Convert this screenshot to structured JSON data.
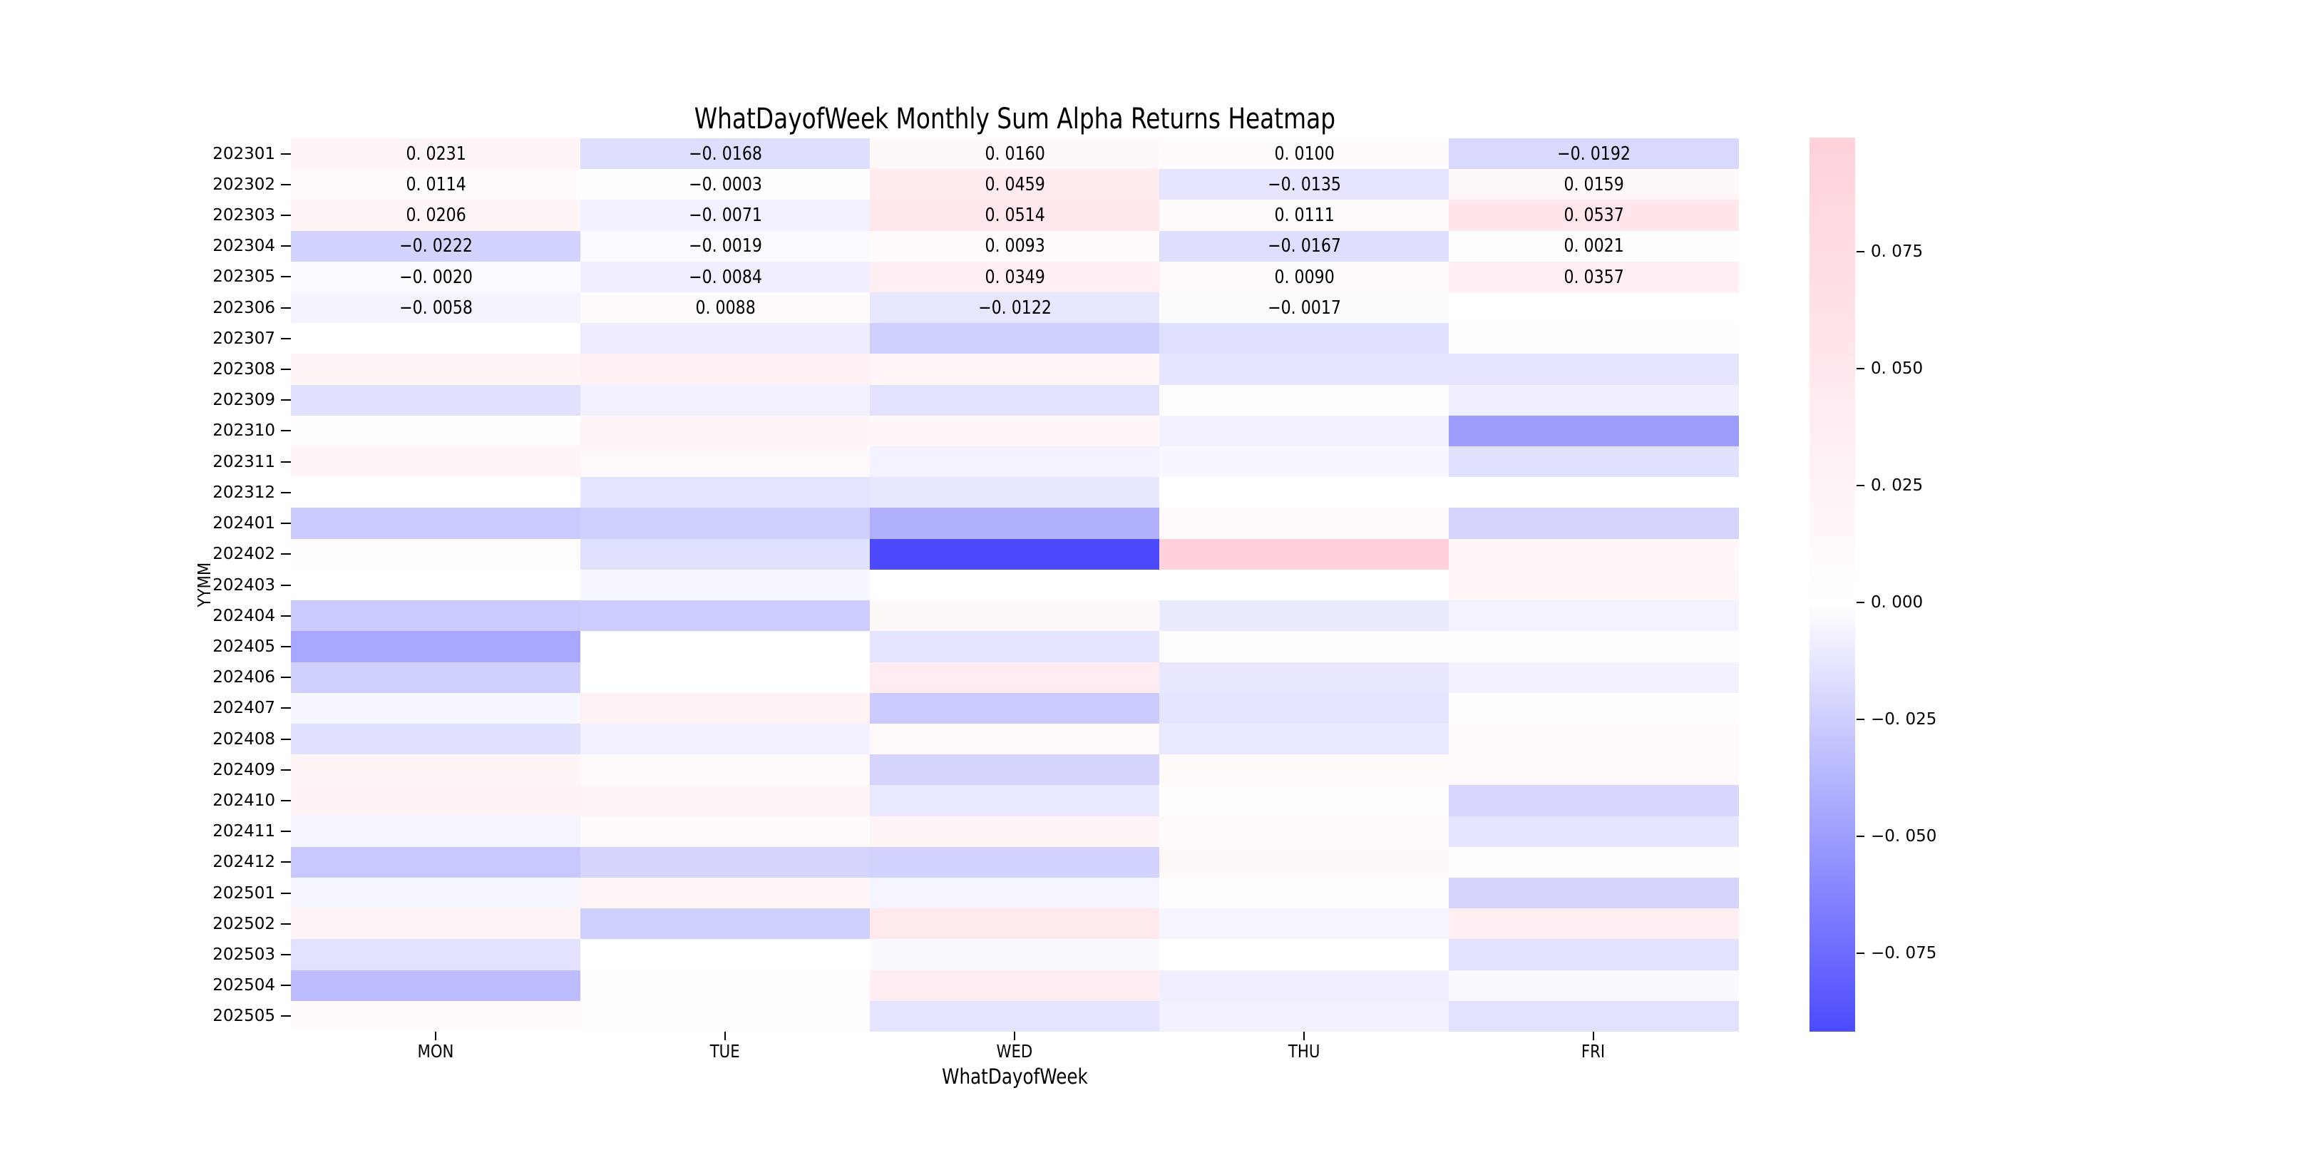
{
  "figure": {
    "background": "#ffffff",
    "text_color": "#000000"
  },
  "chart_data": {
    "type": "heatmap",
    "title": "WhatDayofWeek Monthly Sum Alpha Returns Heatmap",
    "xlabel": "WhatDayofWeek",
    "ylabel": "YYMM",
    "columns": [
      "MON",
      "TUE",
      "WED",
      "THU",
      "FRI"
    ],
    "rows": [
      "202301",
      "202302",
      "202303",
      "202304",
      "202305",
      "202306",
      "202307",
      "202308",
      "202309",
      "202310",
      "202311",
      "202312",
      "202401",
      "202402",
      "202403",
      "202404",
      "202405",
      "202406",
      "202407",
      "202408",
      "202409",
      "202410",
      "202411",
      "202412",
      "202501",
      "202502",
      "202503",
      "202504",
      "202505"
    ],
    "values": [
      [
        0.0231,
        -0.0168,
        0.016,
        0.01,
        -0.0192
      ],
      [
        0.0114,
        -0.0003,
        0.0459,
        -0.0135,
        0.0159
      ],
      [
        0.0206,
        -0.0071,
        0.0514,
        0.0111,
        0.0537
      ],
      [
        -0.0222,
        -0.0019,
        0.0093,
        -0.0167,
        0.0021
      ],
      [
        -0.002,
        -0.0084,
        0.0349,
        0.009,
        0.0357
      ],
      [
        -0.0058,
        0.0088,
        -0.0122,
        -0.0017,
        null
      ],
      [
        0.0,
        -0.009,
        -0.024,
        -0.016,
        0.005
      ],
      [
        0.024,
        0.032,
        0.02,
        -0.013,
        -0.013
      ],
      [
        -0.016,
        -0.007,
        -0.015,
        0.002,
        -0.008
      ],
      [
        0.004,
        0.024,
        0.018,
        -0.007,
        -0.05
      ],
      [
        0.024,
        0.012,
        -0.006,
        -0.004,
        -0.016
      ],
      [
        0.001,
        -0.014,
        -0.012,
        0.001,
        0.001
      ],
      [
        -0.027,
        -0.024,
        -0.04,
        0.01,
        -0.022
      ],
      [
        0.006,
        -0.016,
        -0.0917,
        0.0994,
        0.018
      ],
      [
        0.001,
        -0.004,
        0.001,
        0.0,
        0.02
      ],
      [
        -0.027,
        -0.026,
        0.015,
        -0.01,
        -0.006
      ],
      [
        -0.045,
        0.0,
        -0.014,
        0.004,
        0.004
      ],
      [
        -0.024,
        0.0,
        0.04,
        -0.012,
        -0.007
      ],
      [
        -0.004,
        0.028,
        -0.027,
        -0.013,
        0.006
      ],
      [
        -0.016,
        -0.007,
        0.012,
        -0.011,
        0.013
      ],
      [
        0.022,
        0.01,
        -0.022,
        0.014,
        0.012
      ],
      [
        0.025,
        0.022,
        -0.011,
        0.006,
        -0.021
      ],
      [
        -0.005,
        0.01,
        0.022,
        0.012,
        -0.013
      ],
      [
        -0.028,
        -0.022,
        -0.023,
        0.016,
        0.002
      ],
      [
        -0.004,
        0.02,
        -0.005,
        0.006,
        -0.022
      ],
      [
        0.022,
        -0.024,
        0.048,
        -0.005,
        0.035
      ],
      [
        -0.015,
        0.001,
        -0.003,
        0.001,
        -0.015
      ],
      [
        -0.034,
        0.006,
        0.038,
        -0.008,
        -0.003
      ],
      [
        0.01,
        0.006,
        -0.013,
        -0.007,
        -0.015
      ]
    ],
    "annotations": [
      [
        "0. 0231",
        "−0. 0168",
        "0. 0160",
        "0. 0100",
        "−0. 0192"
      ],
      [
        "0. 0114",
        "−0. 0003",
        "0. 0459",
        "−0. 0135",
        "0. 0159"
      ],
      [
        "0. 0206",
        "−0. 0071",
        "0. 0514",
        "0. 0111",
        "0. 0537"
      ],
      [
        "−0. 0222",
        "−0. 0019",
        "0. 0093",
        "−0. 0167",
        "0. 0021"
      ],
      [
        "−0. 0020",
        "−0. 0084",
        "0. 0349",
        "0. 0090",
        "0. 0357"
      ],
      [
        "−0. 0058",
        "0. 0088",
        "−0. 0122",
        "−0. 0017",
        ""
      ]
    ],
    "colorbar": {
      "vmin": -0.0917,
      "vmax": 0.0994,
      "min_color": "#4b4bfd",
      "zero_color": "#ffffff",
      "max_color": "#ffd1da",
      "ticks": [
        {
          "label": "0. 075",
          "value": 0.075
        },
        {
          "label": "0. 050",
          "value": 0.05
        },
        {
          "label": "0. 025",
          "value": 0.025
        },
        {
          "label": "0. 000",
          "value": 0.0
        },
        {
          "label": "−0. 025",
          "value": -0.025
        },
        {
          "label": "−0. 050",
          "value": -0.05
        },
        {
          "label": "−0. 075",
          "value": -0.075
        }
      ]
    },
    "layout": {
      "grid": "off",
      "legend": "colorbar-right",
      "annotated_rows": "202301-202306 only"
    }
  }
}
